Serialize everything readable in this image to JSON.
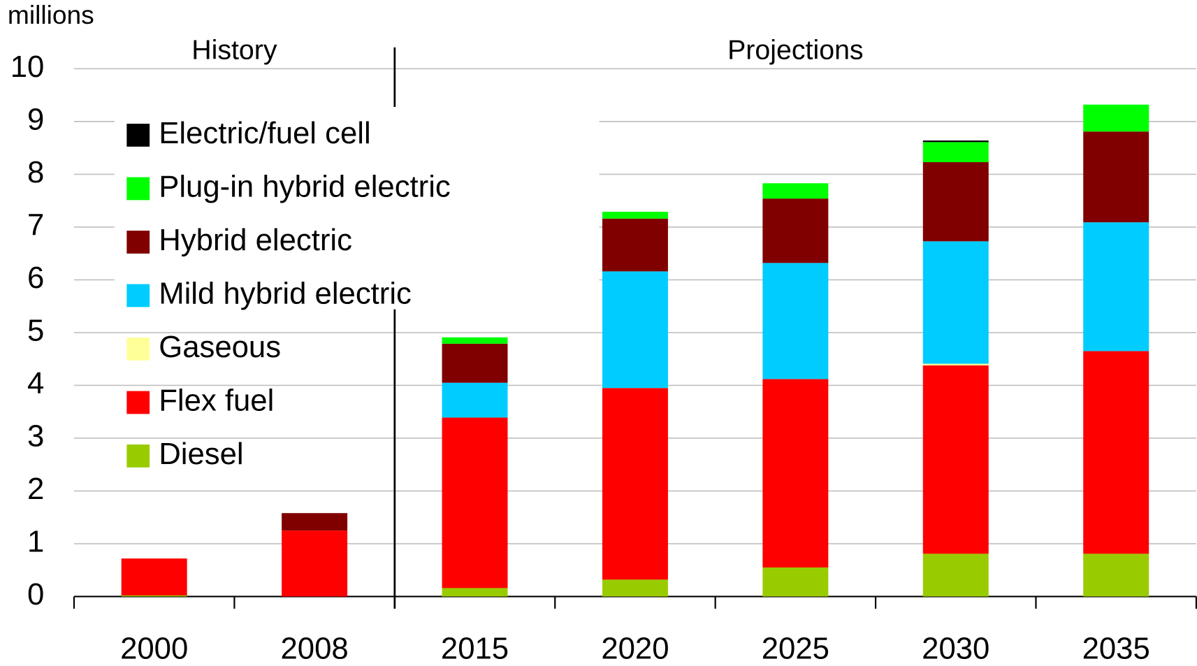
{
  "chart_data": {
    "type": "stacked_bar",
    "y_axis_label": "millions",
    "annotations": [
      "History",
      "Projections"
    ],
    "categories": [
      "2000",
      "2008",
      "2015",
      "2020",
      "2025",
      "2030",
      "2035"
    ],
    "series": [
      {
        "name": "Diesel",
        "color": "#99cc00",
        "values": [
          0.02,
          0,
          0.16,
          0.32,
          0.55,
          0.81,
          0.81
        ]
      },
      {
        "name": "Flex fuel",
        "color": "#ff0000",
        "values": [
          0.7,
          1.25,
          3.23,
          3.63,
          3.57,
          3.57,
          3.84
        ]
      },
      {
        "name": "Gaseous",
        "color": "#ffff99",
        "values": [
          0,
          0,
          0,
          0,
          0,
          0.03,
          0
        ]
      },
      {
        "name": "Mild hybrid electric",
        "color": "#00ccff",
        "values": [
          0,
          0,
          0.66,
          2.21,
          2.2,
          2.32,
          2.44
        ]
      },
      {
        "name": "Hybrid electric",
        "color": "#800000",
        "values": [
          0,
          0.33,
          0.74,
          1.0,
          1.22,
          1.5,
          1.72
        ]
      },
      {
        "name": "Plug-in hybrid electric",
        "color": "#00ff00",
        "values": [
          0,
          0,
          0.12,
          0.13,
          0.29,
          0.38,
          0.51
        ]
      },
      {
        "name": "Electric/fuel cell",
        "color": "#000000",
        "values": [
          0,
          0,
          0,
          0,
          0,
          0.03,
          0
        ]
      }
    ],
    "ylim": [
      0,
      10
    ],
    "yticks": [
      0,
      1,
      2,
      3,
      4,
      5,
      6,
      7,
      8,
      9,
      10
    ],
    "grid": true
  }
}
